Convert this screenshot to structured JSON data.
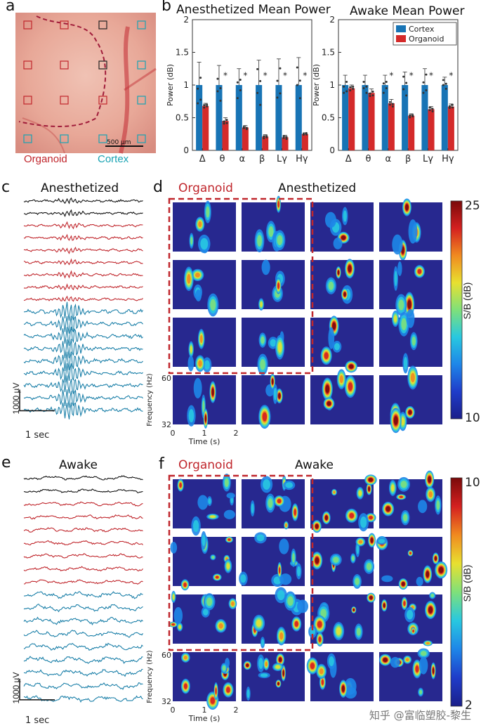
{
  "panels": {
    "a": {
      "label": "a",
      "scale_bar": "500 µm",
      "legend_organoid": "Organoid",
      "legend_cortex": "Cortex"
    },
    "b": {
      "label": "b"
    },
    "c": {
      "label": "c",
      "title": "Anesthetized",
      "scale_v": "1000 µV",
      "scale_t": "1 sec"
    },
    "d": {
      "label": "d",
      "organoid_label": "Organoid",
      "title": "Anesthetized",
      "colorbar_label": "S/B (dB)",
      "colorbar_max": "25",
      "colorbar_min": "10"
    },
    "e": {
      "label": "e",
      "title": "Awake",
      "scale_v": "1000 µV",
      "scale_t": "1 sec"
    },
    "f": {
      "label": "f",
      "organoid_label": "Organoid",
      "title": "Awake",
      "colorbar_label": "S/B (dB)",
      "colorbar_max": "10",
      "colorbar_min": "2"
    }
  },
  "spectro_axes": {
    "ylabel": "Frequency (Hz)",
    "y_ticks": [
      "60",
      "32"
    ],
    "xlabel": "Time (s)",
    "x_ticks": [
      "0",
      "1",
      "2"
    ]
  },
  "watermark": "知乎 @富临塑胶-黎生",
  "chart_data": [
    {
      "type": "bar",
      "title": "Anesthetized Mean Power",
      "ylabel": "Power (dB)",
      "ylim": [
        0,
        2
      ],
      "y_ticks": [
        "0",
        "0.5",
        "1",
        "1.5",
        "2"
      ],
      "categories": [
        "Δ",
        "θ",
        "α",
        "β",
        "Lγ",
        "Hγ"
      ],
      "series": [
        {
          "name": "Cortex",
          "values": [
            1,
            1,
            1,
            1,
            1,
            1
          ],
          "err": [
            0.35,
            0.3,
            0.25,
            0.38,
            0.4,
            0.42
          ],
          "color": "#1874b5"
        },
        {
          "name": "Organoid",
          "values": [
            0.68,
            0.45,
            0.35,
            0.21,
            0.2,
            0.25
          ],
          "err": [
            0.04,
            0.05,
            0.03,
            0.03,
            0.03,
            0.02
          ],
          "color": "#d42a2a"
        }
      ],
      "significance": [
        "",
        "*",
        "*",
        "*",
        "*",
        "*"
      ]
    },
    {
      "type": "bar",
      "title": "Awake Mean Power",
      "ylabel": "Power (dB)",
      "ylim": [
        0,
        2
      ],
      "y_ticks": [
        "0",
        "0.5",
        "1",
        "1.5",
        "2"
      ],
      "categories": [
        "Δ",
        "θ",
        "α",
        "β",
        "Lγ",
        "Hγ"
      ],
      "series": [
        {
          "name": "Cortex",
          "values": [
            1,
            1,
            1,
            1,
            1,
            1
          ],
          "err": [
            0.15,
            0.15,
            0.15,
            0.2,
            0.25,
            0.12
          ],
          "color": "#1874b5"
        },
        {
          "name": "Organoid",
          "values": [
            0.95,
            0.88,
            0.72,
            0.53,
            0.63,
            0.67
          ],
          "err": [
            0.05,
            0.06,
            0.06,
            0.03,
            0.04,
            0.04
          ],
          "color": "#d42a2a"
        }
      ],
      "significance": [
        "",
        "",
        "*",
        "*",
        "*",
        "*"
      ],
      "legend": {
        "placement": "top-right"
      }
    }
  ]
}
